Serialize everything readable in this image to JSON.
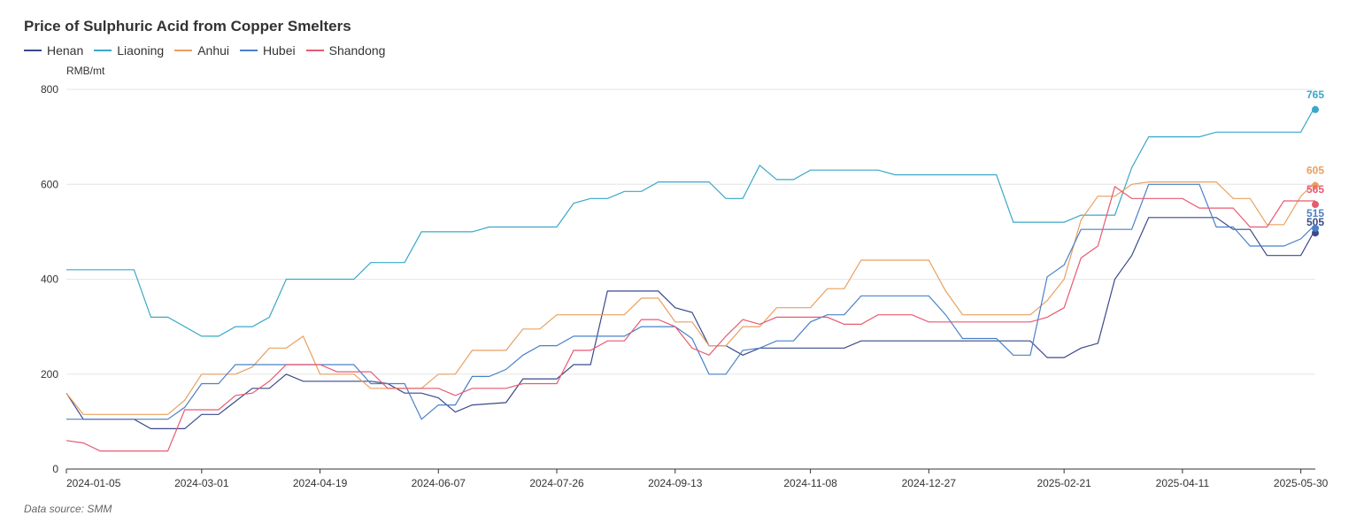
{
  "chart_data": {
    "type": "line",
    "title": "Price of Sulphuric Acid from Copper Smelters",
    "ylabel": "RMB/mt",
    "ylim": [
      0,
      800
    ],
    "yticks": [
      0,
      200,
      400,
      600,
      800
    ],
    "xlim": [
      "2024-01-05",
      "2025-06-05"
    ],
    "xticks": [
      "2024-01-05",
      "2024-03-01",
      "2024-04-19",
      "2024-06-07",
      "2024-07-26",
      "2024-09-13",
      "2024-11-08",
      "2024-12-27",
      "2025-02-21",
      "2025-04-11",
      "2025-05-30"
    ],
    "grid": true,
    "legend": "top-left",
    "source": "Data source:  SMM",
    "series": [
      {
        "name": "Henan",
        "color": "#3a4a8a",
        "end_label": "505",
        "points": [
          [
            "2024-01-05",
            160
          ],
          [
            "2024-01-12",
            105
          ],
          [
            "2024-02-02",
            105
          ],
          [
            "2024-02-09",
            85
          ],
          [
            "2024-02-23",
            85
          ],
          [
            "2024-03-01",
            115
          ],
          [
            "2024-03-08",
            115
          ],
          [
            "2024-03-22",
            170
          ],
          [
            "2024-03-29",
            170
          ],
          [
            "2024-04-05",
            200
          ],
          [
            "2024-04-12",
            185
          ],
          [
            "2024-05-10",
            185
          ],
          [
            "2024-05-17",
            180
          ],
          [
            "2024-05-24",
            160
          ],
          [
            "2024-05-31",
            160
          ],
          [
            "2024-06-07",
            150
          ],
          [
            "2024-06-14",
            120
          ],
          [
            "2024-06-21",
            135
          ],
          [
            "2024-07-05",
            140
          ],
          [
            "2024-07-12",
            190
          ],
          [
            "2024-07-26",
            190
          ],
          [
            "2024-08-02",
            220
          ],
          [
            "2024-08-09",
            220
          ],
          [
            "2024-08-16",
            375
          ],
          [
            "2024-09-06",
            375
          ],
          [
            "2024-09-13",
            340
          ],
          [
            "2024-09-20",
            330
          ],
          [
            "2024-09-27",
            260
          ],
          [
            "2024-10-04",
            260
          ],
          [
            "2024-10-11",
            240
          ],
          [
            "2024-10-18",
            255
          ],
          [
            "2024-11-22",
            255
          ],
          [
            "2024-11-29",
            270
          ],
          [
            "2025-02-07",
            270
          ],
          [
            "2025-02-14",
            235
          ],
          [
            "2025-02-21",
            235
          ],
          [
            "2025-02-28",
            255
          ],
          [
            "2025-03-07",
            265
          ],
          [
            "2025-03-14",
            400
          ],
          [
            "2025-03-21",
            450
          ],
          [
            "2025-03-28",
            530
          ],
          [
            "2025-04-25",
            530
          ],
          [
            "2025-05-02",
            505
          ],
          [
            "2025-05-09",
            505
          ],
          [
            "2025-05-16",
            450
          ],
          [
            "2025-05-30",
            450
          ],
          [
            "2025-06-05",
            505
          ]
        ]
      },
      {
        "name": "Liaoning",
        "color": "#3aa8c8",
        "end_label": "765",
        "points": [
          [
            "2024-01-05",
            420
          ],
          [
            "2024-02-02",
            420
          ],
          [
            "2024-02-09",
            320
          ],
          [
            "2024-02-16",
            320
          ],
          [
            "2024-03-01",
            280
          ],
          [
            "2024-03-08",
            280
          ],
          [
            "2024-03-15",
            300
          ],
          [
            "2024-03-22",
            300
          ],
          [
            "2024-03-29",
            320
          ],
          [
            "2024-04-05",
            400
          ],
          [
            "2024-05-03",
            400
          ],
          [
            "2024-05-10",
            435
          ],
          [
            "2024-05-24",
            435
          ],
          [
            "2024-05-31",
            500
          ],
          [
            "2024-06-21",
            500
          ],
          [
            "2024-06-28",
            510
          ],
          [
            "2024-07-26",
            510
          ],
          [
            "2024-08-02",
            560
          ],
          [
            "2024-08-09",
            570
          ],
          [
            "2024-08-16",
            570
          ],
          [
            "2024-08-23",
            585
          ],
          [
            "2024-08-30",
            585
          ],
          [
            "2024-09-06",
            605
          ],
          [
            "2024-09-27",
            605
          ],
          [
            "2024-10-04",
            570
          ],
          [
            "2024-10-11",
            570
          ],
          [
            "2024-10-18",
            640
          ],
          [
            "2024-10-25",
            610
          ],
          [
            "2024-11-01",
            610
          ],
          [
            "2024-11-08",
            630
          ],
          [
            "2024-12-06",
            630
          ],
          [
            "2024-12-13",
            620
          ],
          [
            "2025-01-24",
            620
          ],
          [
            "2025-01-31",
            520
          ],
          [
            "2025-02-21",
            520
          ],
          [
            "2025-02-28",
            535
          ],
          [
            "2025-03-14",
            535
          ],
          [
            "2025-03-21",
            635
          ],
          [
            "2025-03-28",
            700
          ],
          [
            "2025-04-18",
            700
          ],
          [
            "2025-04-25",
            710
          ],
          [
            "2025-05-30",
            710
          ],
          [
            "2025-06-05",
            765
          ]
        ]
      },
      {
        "name": "Anhui",
        "color": "#e8a060",
        "end_label": "605",
        "points": [
          [
            "2024-01-05",
            160
          ],
          [
            "2024-01-12",
            115
          ],
          [
            "2024-02-16",
            115
          ],
          [
            "2024-02-23",
            145
          ],
          [
            "2024-03-01",
            200
          ],
          [
            "2024-03-15",
            200
          ],
          [
            "2024-03-22",
            215
          ],
          [
            "2024-03-29",
            255
          ],
          [
            "2024-04-05",
            255
          ],
          [
            "2024-04-12",
            280
          ],
          [
            "2024-04-19",
            200
          ],
          [
            "2024-05-03",
            200
          ],
          [
            "2024-05-10",
            170
          ],
          [
            "2024-05-31",
            170
          ],
          [
            "2024-06-07",
            200
          ],
          [
            "2024-06-14",
            200
          ],
          [
            "2024-06-21",
            250
          ],
          [
            "2024-07-05",
            250
          ],
          [
            "2024-07-12",
            295
          ],
          [
            "2024-07-19",
            295
          ],
          [
            "2024-07-26",
            325
          ],
          [
            "2024-08-23",
            325
          ],
          [
            "2024-08-30",
            360
          ],
          [
            "2024-09-06",
            360
          ],
          [
            "2024-09-13",
            310
          ],
          [
            "2024-09-20",
            310
          ],
          [
            "2024-09-27",
            260
          ],
          [
            "2024-10-04",
            260
          ],
          [
            "2024-10-11",
            300
          ],
          [
            "2024-10-18",
            300
          ],
          [
            "2024-10-25",
            340
          ],
          [
            "2024-11-08",
            340
          ],
          [
            "2024-11-15",
            380
          ],
          [
            "2024-11-22",
            380
          ],
          [
            "2024-11-29",
            440
          ],
          [
            "2024-12-27",
            440
          ],
          [
            "2025-01-03",
            375
          ],
          [
            "2025-01-10",
            325
          ],
          [
            "2025-02-07",
            325
          ],
          [
            "2025-02-14",
            355
          ],
          [
            "2025-02-21",
            400
          ],
          [
            "2025-02-28",
            525
          ],
          [
            "2025-03-07",
            575
          ],
          [
            "2025-03-14",
            575
          ],
          [
            "2025-03-21",
            600
          ],
          [
            "2025-03-28",
            605
          ],
          [
            "2025-04-25",
            605
          ],
          [
            "2025-05-02",
            570
          ],
          [
            "2025-05-09",
            570
          ],
          [
            "2025-05-16",
            515
          ],
          [
            "2025-05-23",
            515
          ],
          [
            "2025-05-30",
            575
          ],
          [
            "2025-06-05",
            605
          ]
        ]
      },
      {
        "name": "Hubei",
        "color": "#4a80c8",
        "end_label": "515",
        "points": [
          [
            "2024-01-05",
            105
          ],
          [
            "2024-02-16",
            105
          ],
          [
            "2024-02-23",
            130
          ],
          [
            "2024-03-01",
            180
          ],
          [
            "2024-03-08",
            180
          ],
          [
            "2024-03-15",
            220
          ],
          [
            "2024-05-03",
            220
          ],
          [
            "2024-05-10",
            180
          ],
          [
            "2024-05-24",
            180
          ],
          [
            "2024-05-31",
            105
          ],
          [
            "2024-06-07",
            135
          ],
          [
            "2024-06-14",
            135
          ],
          [
            "2024-06-21",
            195
          ],
          [
            "2024-06-28",
            195
          ],
          [
            "2024-07-05",
            210
          ],
          [
            "2024-07-12",
            240
          ],
          [
            "2024-07-19",
            260
          ],
          [
            "2024-07-26",
            260
          ],
          [
            "2024-08-02",
            280
          ],
          [
            "2024-08-23",
            280
          ],
          [
            "2024-08-30",
            300
          ],
          [
            "2024-09-13",
            300
          ],
          [
            "2024-09-20",
            275
          ],
          [
            "2024-09-27",
            200
          ],
          [
            "2024-10-04",
            200
          ],
          [
            "2024-10-11",
            250
          ],
          [
            "2024-10-18",
            255
          ],
          [
            "2024-10-25",
            270
          ],
          [
            "2024-11-01",
            270
          ],
          [
            "2024-11-08",
            310
          ],
          [
            "2024-11-15",
            325
          ],
          [
            "2024-11-22",
            325
          ],
          [
            "2024-11-29",
            365
          ],
          [
            "2024-12-27",
            365
          ],
          [
            "2025-01-03",
            325
          ],
          [
            "2025-01-10",
            275
          ],
          [
            "2025-01-24",
            275
          ],
          [
            "2025-01-31",
            240
          ],
          [
            "2025-02-07",
            240
          ],
          [
            "2025-02-14",
            405
          ],
          [
            "2025-02-21",
            430
          ],
          [
            "2025-02-28",
            505
          ],
          [
            "2025-03-21",
            505
          ],
          [
            "2025-03-28",
            600
          ],
          [
            "2025-04-18",
            600
          ],
          [
            "2025-04-25",
            510
          ],
          [
            "2025-05-02",
            510
          ],
          [
            "2025-05-09",
            470
          ],
          [
            "2025-05-23",
            470
          ],
          [
            "2025-05-30",
            485
          ],
          [
            "2025-06-05",
            515
          ]
        ]
      },
      {
        "name": "Shandong",
        "color": "#e85a70",
        "end_label": "565",
        "points": [
          [
            "2024-01-05",
            60
          ],
          [
            "2024-01-12",
            55
          ],
          [
            "2024-01-19",
            38
          ],
          [
            "2024-02-16",
            38
          ],
          [
            "2024-02-23",
            125
          ],
          [
            "2024-03-08",
            125
          ],
          [
            "2024-03-15",
            155
          ],
          [
            "2024-03-22",
            160
          ],
          [
            "2024-03-29",
            185
          ],
          [
            "2024-04-05",
            220
          ],
          [
            "2024-04-19",
            220
          ],
          [
            "2024-04-26",
            205
          ],
          [
            "2024-05-10",
            205
          ],
          [
            "2024-05-17",
            170
          ],
          [
            "2024-06-07",
            170
          ],
          [
            "2024-06-14",
            155
          ],
          [
            "2024-06-21",
            170
          ],
          [
            "2024-07-05",
            170
          ],
          [
            "2024-07-12",
            180
          ],
          [
            "2024-07-26",
            180
          ],
          [
            "2024-08-02",
            250
          ],
          [
            "2024-08-09",
            250
          ],
          [
            "2024-08-16",
            270
          ],
          [
            "2024-08-23",
            270
          ],
          [
            "2024-08-30",
            315
          ],
          [
            "2024-09-06",
            315
          ],
          [
            "2024-09-13",
            300
          ],
          [
            "2024-09-20",
            255
          ],
          [
            "2024-09-27",
            240
          ],
          [
            "2024-10-04",
            280
          ],
          [
            "2024-10-11",
            315
          ],
          [
            "2024-10-18",
            305
          ],
          [
            "2024-10-25",
            320
          ],
          [
            "2024-11-15",
            320
          ],
          [
            "2024-11-22",
            305
          ],
          [
            "2024-11-29",
            305
          ],
          [
            "2024-12-06",
            325
          ],
          [
            "2024-12-20",
            325
          ],
          [
            "2024-12-27",
            310
          ],
          [
            "2025-02-07",
            310
          ],
          [
            "2025-02-14",
            320
          ],
          [
            "2025-02-21",
            340
          ],
          [
            "2025-02-28",
            445
          ],
          [
            "2025-03-07",
            470
          ],
          [
            "2025-03-14",
            595
          ],
          [
            "2025-03-21",
            570
          ],
          [
            "2025-04-11",
            570
          ],
          [
            "2025-04-18",
            550
          ],
          [
            "2025-05-02",
            550
          ],
          [
            "2025-05-09",
            510
          ],
          [
            "2025-05-16",
            510
          ],
          [
            "2025-05-23",
            565
          ],
          [
            "2025-06-05",
            565
          ]
        ]
      }
    ]
  }
}
